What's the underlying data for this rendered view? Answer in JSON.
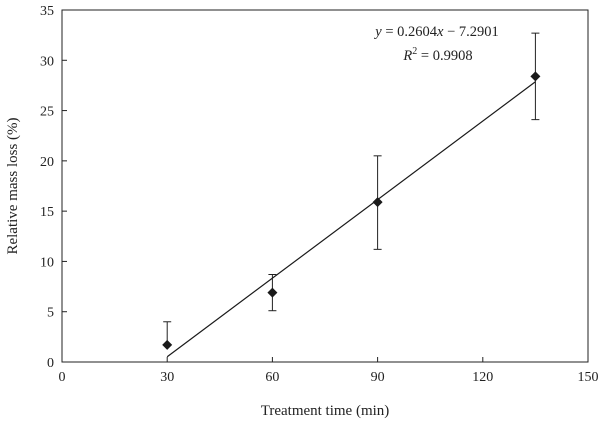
{
  "chart_data": {
    "type": "scatter",
    "title": "",
    "xlabel": "Treatment time (min)",
    "ylabel": "Relative mass loss (%)",
    "xlim": [
      0,
      150
    ],
    "ylim": [
      0,
      35
    ],
    "xticks": [
      0,
      30,
      60,
      90,
      120,
      150
    ],
    "yticks": [
      0,
      5,
      10,
      15,
      20,
      25,
      30,
      35
    ],
    "grid": false,
    "marker": "diamond",
    "color": "#1a1a1a",
    "points": [
      {
        "x": 30,
        "y": 1.7,
        "err_low": 1.7,
        "err_high": 4.0
      },
      {
        "x": 60,
        "y": 6.9,
        "err_low": 5.1,
        "err_high": 8.7
      },
      {
        "x": 90,
        "y": 15.9,
        "err_low": 11.2,
        "err_high": 20.5
      },
      {
        "x": 135,
        "y": 28.4,
        "err_low": 24.1,
        "err_high": 32.7
      }
    ],
    "fit": {
      "slope": 0.2604,
      "intercept": -7.2901,
      "x_range": [
        30,
        135
      ]
    },
    "annotation": {
      "equation_y": "y",
      "equation_rest": " = 0.2604",
      "equation_x": "x",
      "equation_tail": " − 7.2901",
      "r2_label": "R",
      "r2_sup": "2",
      "r2_value": " = 0.9908"
    }
  }
}
